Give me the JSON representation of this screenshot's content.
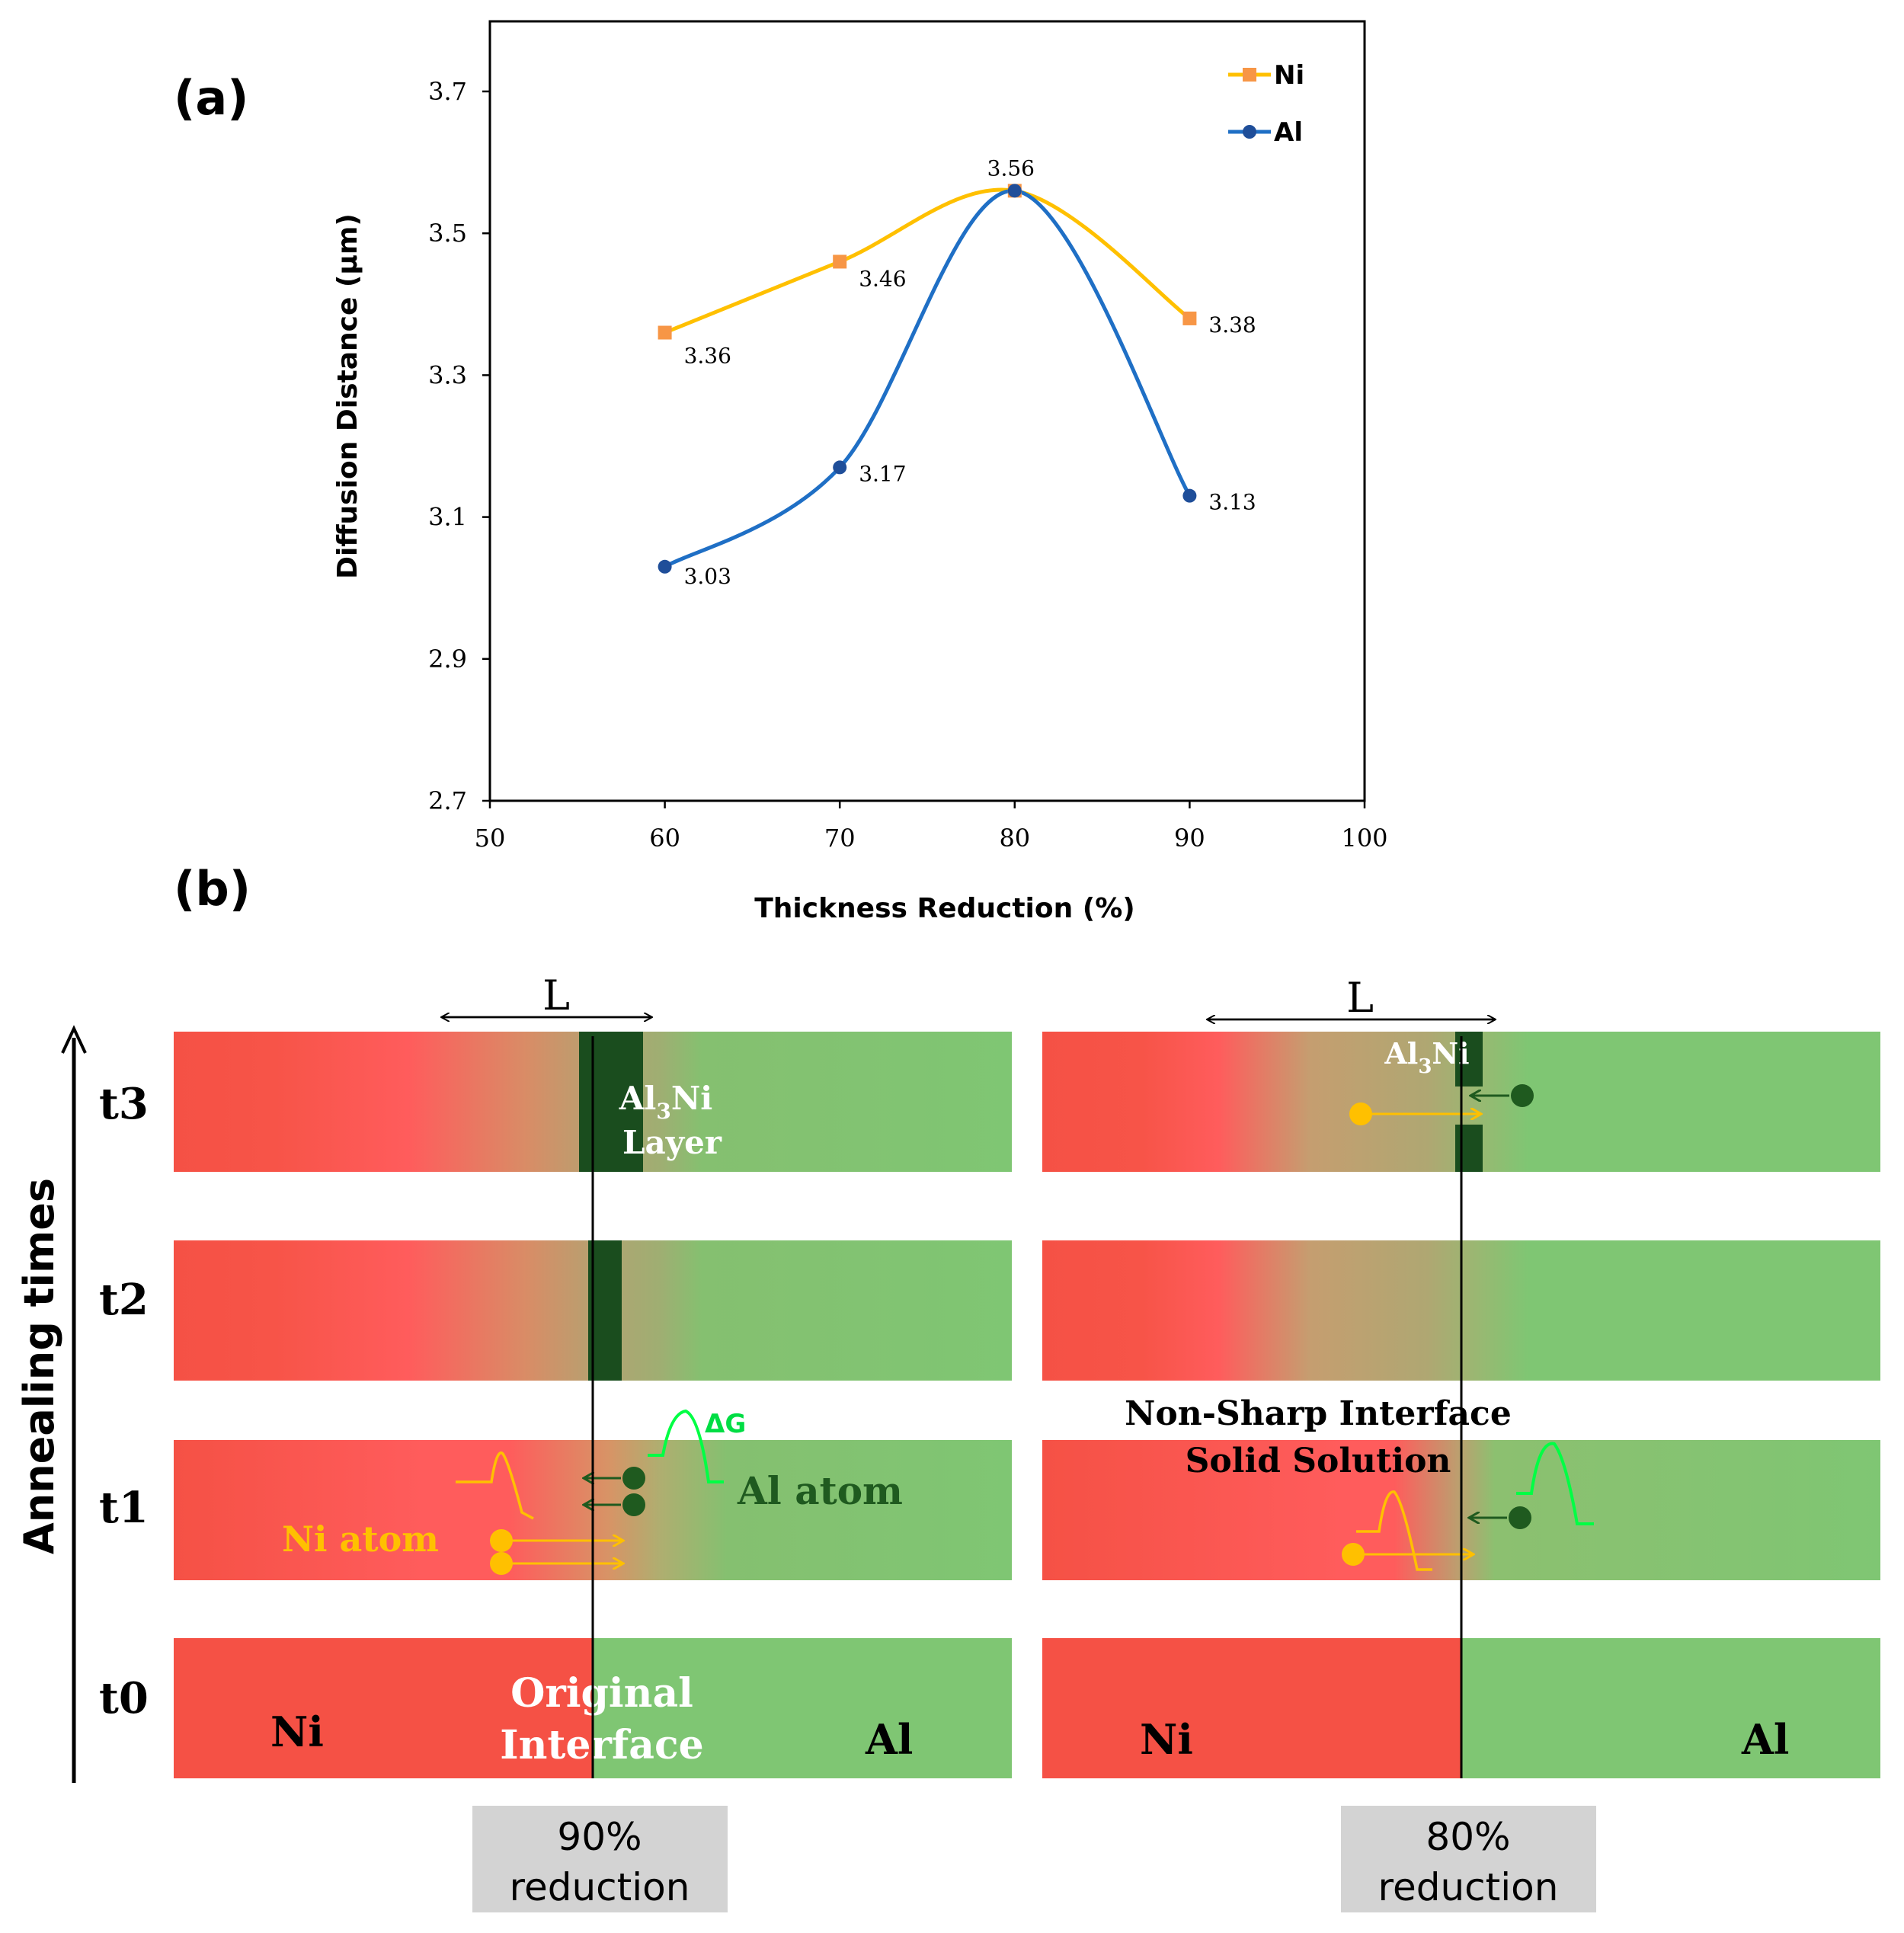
{
  "panel_a": {
    "label": "(a)"
  },
  "panel_b": {
    "label": "(b)",
    "axis_label": "Annealing times",
    "times": [
      "t3",
      "t2",
      "t1",
      "t0"
    ],
    "left": {
      "L_label": "L",
      "layer_label_main": "Al",
      "layer_label_sub": "3",
      "layer_label_tail": "Ni",
      "layer_label_line2": "Layer",
      "delta_g": "ΔG",
      "al_atom": "Al atom",
      "ni_atom": "Ni atom",
      "interface_line1": "Original",
      "interface_line2": "Interface",
      "ni": "Ni",
      "al": "Al",
      "caption_line1": "90%",
      "caption_line2": "reduction"
    },
    "right": {
      "L_label": "L",
      "layer_label_main": "Al",
      "layer_label_sub": "3",
      "layer_label_tail": "Ni",
      "non_sharp": "Non-Sharp Interface",
      "solid_solution": "Solid Solution",
      "ni": "Ni",
      "al": "Al",
      "caption_line1": "80%",
      "caption_line2": "reduction"
    }
  },
  "colors": {
    "ni_series": "#FFC000",
    "ni_marker": "#F79646",
    "al_series": "#1F6FC5",
    "al_marker": "#1F4E99",
    "ni_metal": "#F55145",
    "ni_bright": "#FF5C5C",
    "al_metal": "#7FC673",
    "al3ni": "#1A4D1E",
    "ni_atom": "#FFC000",
    "al_atom": "#1F5A1F",
    "delta_g": "#00FF44",
    "caption_bg": "#D3D3D3"
  },
  "chart_data": {
    "type": "line",
    "title": "",
    "xlabel": "Thickness Reduction (%)",
    "ylabel": "Diffusion Distance (µm)",
    "xlim": [
      50,
      100
    ],
    "ylim": [
      2.7,
      3.8
    ],
    "x_ticks": [
      50,
      60,
      70,
      80,
      90,
      100
    ],
    "y_ticks": [
      2.7,
      2.9,
      3.1,
      3.3,
      3.5,
      3.7
    ],
    "x_tick_labels": [
      "50",
      "60",
      "70",
      "80",
      "90",
      "100"
    ],
    "y_tick_labels": [
      "2.7",
      "2.9",
      "3.1",
      "3.3",
      "3.5",
      "3.7"
    ],
    "legend_position": "top-right",
    "smooth": true,
    "series": [
      {
        "name": "Ni",
        "marker": "square",
        "x": [
          60,
          70,
          80,
          90
        ],
        "values": [
          3.36,
          3.46,
          3.56,
          3.38
        ],
        "labels": [
          "3.36",
          "3.46",
          "3.56",
          "3.38"
        ]
      },
      {
        "name": "Al",
        "marker": "circle",
        "x": [
          60,
          70,
          80,
          90
        ],
        "values": [
          3.03,
          3.17,
          3.56,
          3.13
        ],
        "labels": [
          "3.03",
          "3.17",
          "",
          "3.13"
        ]
      }
    ]
  }
}
